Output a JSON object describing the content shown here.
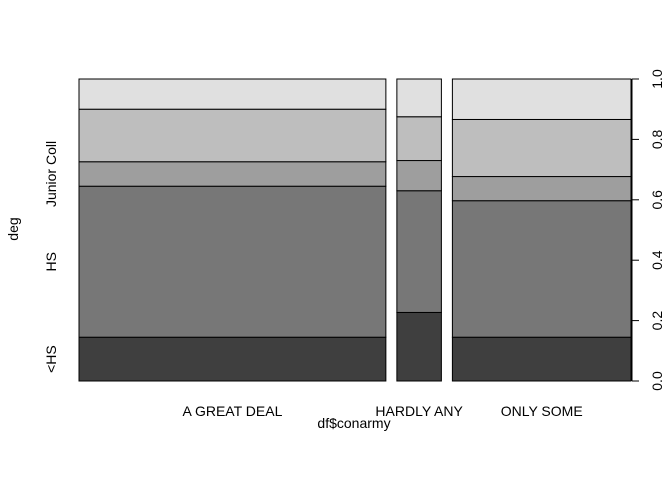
{
  "chart_data": {
    "type": "spineplot",
    "title": "",
    "xlabel": "df$conarmy",
    "ylabel": "deg",
    "ylim": [
      0,
      1
    ],
    "y_ticks": [
      "0.0",
      "0.2",
      "0.4",
      "0.6",
      "0.8",
      "1.0"
    ],
    "y_tick_values": [
      0,
      0.2,
      0.4,
      0.6,
      0.8,
      1.0
    ],
    "categories": [
      "A GREAT DEAL",
      "HARDLY ANY",
      "ONLY SOME"
    ],
    "category_widths": [
      0.579,
      0.084,
      0.337
    ],
    "levels": [
      "<HS",
      "HS",
      "Junior Coll",
      "",
      ""
    ],
    "level_colors": [
      "#3f3f3f",
      "#777777",
      "#9e9e9e",
      "#bebebe",
      "#e0e0e0"
    ],
    "cumulative": [
      [
        0.145,
        0.645,
        0.726,
        0.9,
        1.0
      ],
      [
        0.227,
        0.63,
        0.73,
        0.875,
        1.0
      ],
      [
        0.145,
        0.597,
        0.677,
        0.866,
        1.0
      ]
    ]
  }
}
